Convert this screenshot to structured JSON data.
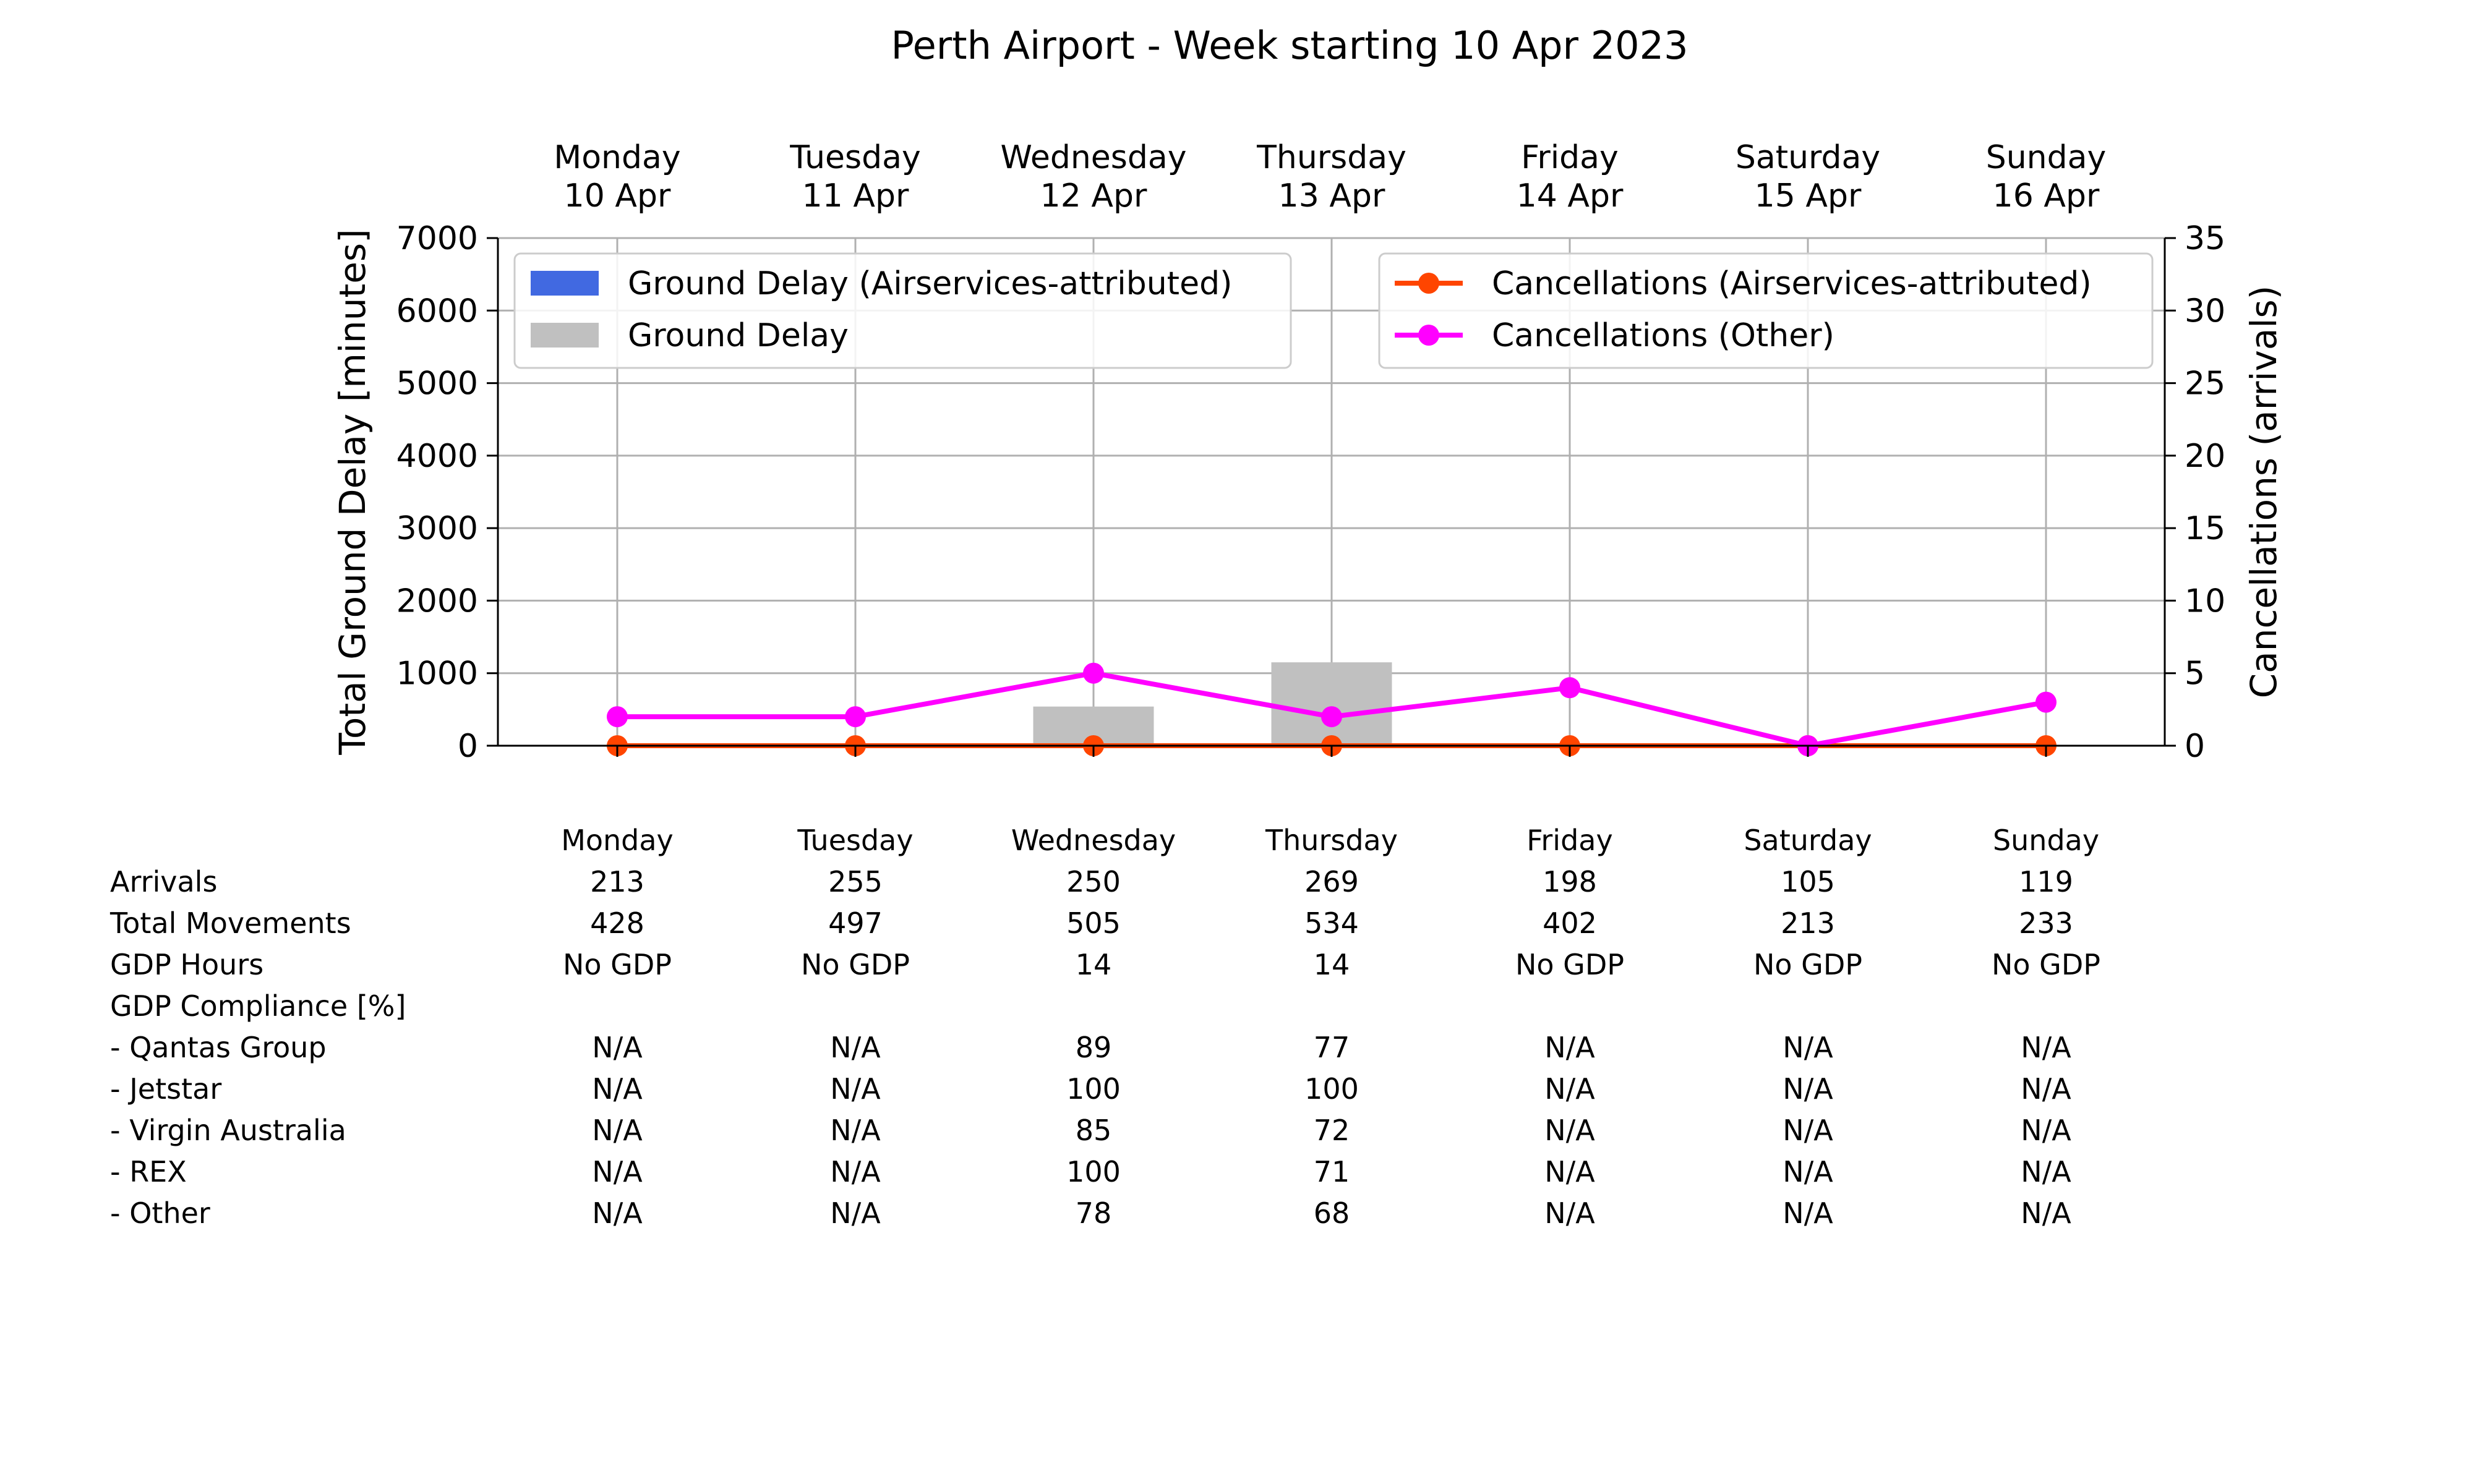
{
  "chart_data": {
    "type": "bar+line",
    "title": "Perth Airport - Week starting 10 Apr 2023",
    "categories": [
      "Monday\n10 Apr",
      "Tuesday\n11 Apr",
      "Wednesday\n12 Apr",
      "Thursday\n13 Apr",
      "Friday\n14 Apr",
      "Saturday\n15 Apr",
      "Sunday\n16 Apr"
    ],
    "ylabel_left": "Total Ground Delay [minutes]",
    "ylabel_right": "Cancellations (arrivals)",
    "ylim_left": [
      0,
      7000
    ],
    "ylim_right": [
      0,
      35
    ],
    "yticks_left": [
      0,
      1000,
      2000,
      3000,
      4000,
      5000,
      6000,
      7000
    ],
    "yticks_right": [
      0,
      5,
      10,
      15,
      20,
      25,
      30,
      35
    ],
    "grid": true,
    "bars": [
      {
        "name": "Ground Delay (Airservices-attributed)",
        "color": "#4169e1",
        "values": [
          0,
          0,
          0,
          0,
          0,
          0,
          0
        ]
      },
      {
        "name": "Ground Delay",
        "color": "#c0c0c0",
        "values": [
          0,
          0,
          540,
          1150,
          0,
          0,
          0
        ]
      }
    ],
    "lines": [
      {
        "name": "Cancellations (Airservices-attributed)",
        "color": "#ff4500",
        "axis": "right",
        "values": [
          0,
          0,
          0,
          0,
          0,
          0,
          0
        ]
      },
      {
        "name": "Cancellations (Other)",
        "color": "#ff00ff",
        "axis": "right",
        "values": [
          2,
          2,
          5,
          2,
          4,
          0,
          3
        ]
      }
    ],
    "legend_left_placement": "top-left",
    "legend_right_placement": "top-right"
  },
  "table": {
    "columns": [
      "Monday",
      "Tuesday",
      "Wednesday",
      "Thursday",
      "Friday",
      "Saturday",
      "Sunday"
    ],
    "rows": [
      {
        "label": "Arrivals",
        "values": [
          "213",
          "255",
          "250",
          "269",
          "198",
          "105",
          "119"
        ]
      },
      {
        "label": "Total Movements",
        "values": [
          "428",
          "497",
          "505",
          "534",
          "402",
          "213",
          "233"
        ]
      },
      {
        "label": "GDP Hours",
        "values": [
          "No GDP",
          "No GDP",
          "14",
          "14",
          "No GDP",
          "No GDP",
          "No GDP"
        ]
      },
      {
        "label": "GDP Compliance [%]",
        "values": [
          "",
          "",
          "",
          "",
          "",
          "",
          ""
        ]
      },
      {
        "label": "  - Qantas Group",
        "values": [
          "N/A",
          "N/A",
          "89",
          "77",
          "N/A",
          "N/A",
          "N/A"
        ]
      },
      {
        "label": "  - Jetstar",
        "values": [
          "N/A",
          "N/A",
          "100",
          "100",
          "N/A",
          "N/A",
          "N/A"
        ]
      },
      {
        "label": "  - Virgin Australia",
        "values": [
          "N/A",
          "N/A",
          "85",
          "72",
          "N/A",
          "N/A",
          "N/A"
        ]
      },
      {
        "label": "  - REX",
        "values": [
          "N/A",
          "N/A",
          "100",
          "71",
          "N/A",
          "N/A",
          "N/A"
        ]
      },
      {
        "label": "  - Other",
        "values": [
          "N/A",
          "N/A",
          "78",
          "68",
          "N/A",
          "N/A",
          "N/A"
        ]
      }
    ]
  }
}
